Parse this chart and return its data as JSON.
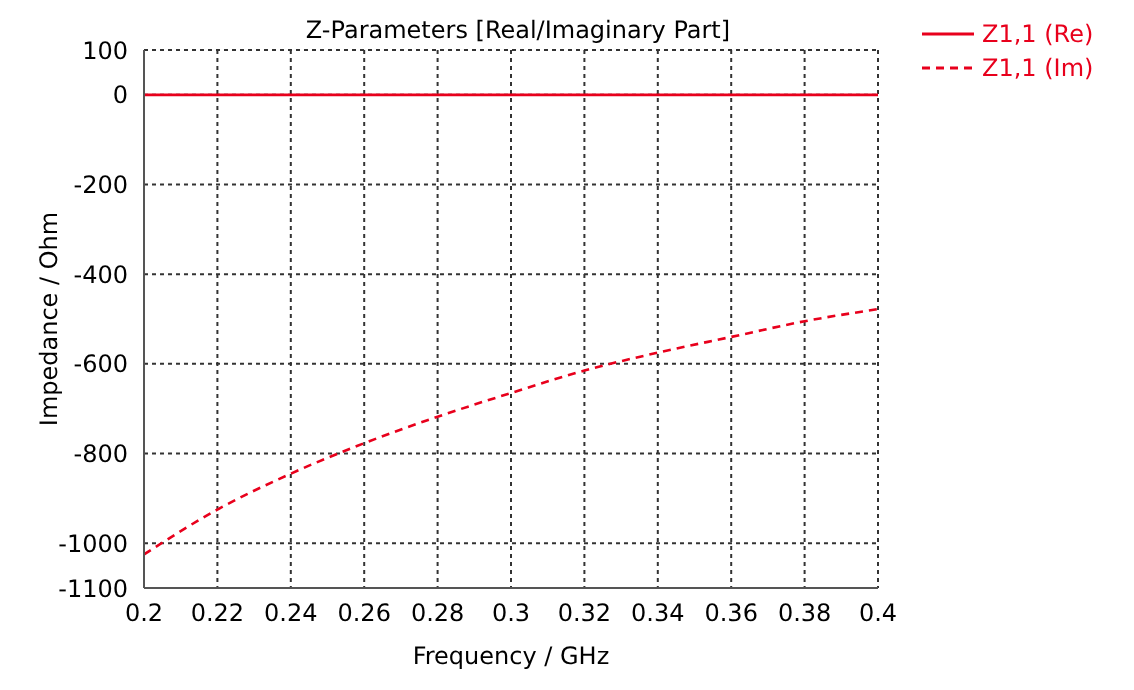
{
  "chart_data": {
    "type": "line",
    "title": "Z-Parameters [Real/Imaginary Part]",
    "xlabel": "Frequency / GHz",
    "ylabel": "Impedance / Ohm",
    "x": [
      0.2,
      0.22,
      0.24,
      0.26,
      0.28,
      0.3,
      0.32,
      0.34,
      0.36,
      0.38,
      0.4
    ],
    "series": [
      {
        "name": "Z1,1 (Re)",
        "color": "#e8001c",
        "line_style": "solid",
        "values": [
          0,
          0,
          0,
          0,
          0,
          0,
          0,
          0,
          0,
          0,
          0
        ]
      },
      {
        "name": "Z1,1 (Im)",
        "color": "#e8001c",
        "line_style": "dashed",
        "values": [
          -1025,
          -925,
          -845,
          -777,
          -718,
          -665,
          -615,
          -575,
          -540,
          -505,
          -478
        ]
      }
    ],
    "xlim": [
      0.2,
      0.4
    ],
    "xticks": [
      0.2,
      0.22,
      0.24,
      0.26,
      0.28,
      0.3,
      0.32,
      0.34,
      0.36,
      0.38,
      0.4
    ],
    "ylim": [
      -1100,
      100
    ],
    "yticks": [
      -1100,
      -1000,
      -800,
      -600,
      -400,
      -200,
      0,
      100
    ],
    "grid": true,
    "legend": "top right",
    "marker": "none"
  }
}
